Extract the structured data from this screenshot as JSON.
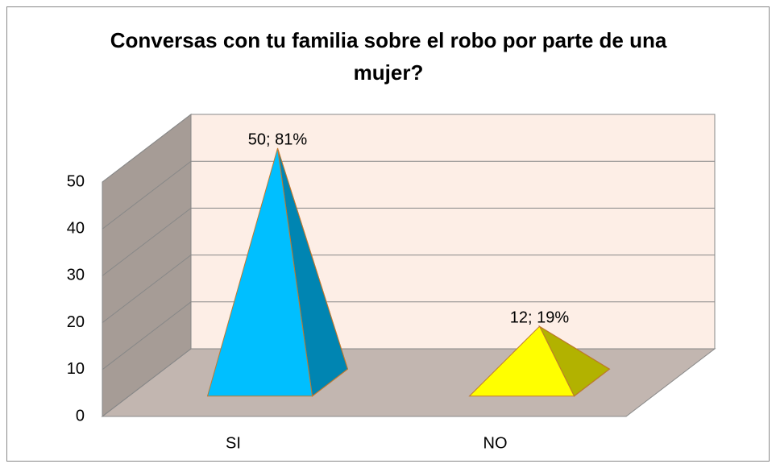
{
  "chart_data": {
    "type": "pyramid",
    "title": "Conversas con tu familia sobre el robo por parte de una mujer?",
    "categories": [
      "SI",
      "NO"
    ],
    "series": [
      {
        "colors": [
          "#00bfff",
          "#ffff00"
        ],
        "values": [
          50,
          12
        ],
        "value_labels": [
          "50; 81%",
          "12; 19%"
        ]
      }
    ],
    "ylim": [
      0,
      50
    ],
    "yticks": [
      0,
      10,
      20,
      30,
      40,
      50
    ],
    "grid": true
  }
}
